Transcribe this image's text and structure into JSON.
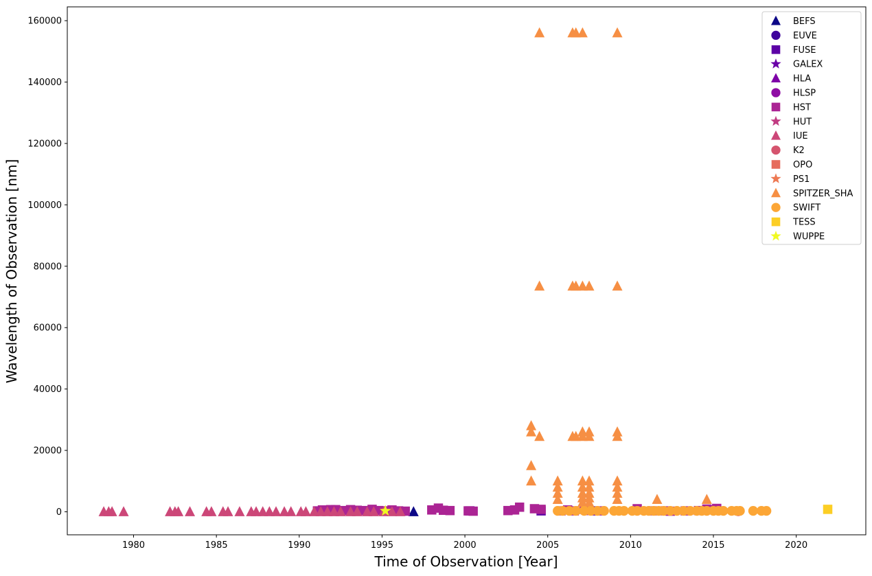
{
  "chart_data": {
    "type": "scatter",
    "title": "",
    "xlabel": "Time of Observation [Year]",
    "ylabel": "Wavelength of Observation [nm]",
    "xlim": [
      1976.0,
      2024.2
    ],
    "ylim": [
      -7500,
      164500
    ],
    "xticks": [
      1980,
      1985,
      1990,
      1995,
      2000,
      2005,
      2010,
      2015,
      2020
    ],
    "yticks": [
      0,
      20000,
      40000,
      60000,
      80000,
      100000,
      120000,
      140000,
      160000
    ],
    "grid": false,
    "legend_position": "top-right",
    "series": [
      {
        "name": "BEFS",
        "marker": "triangle",
        "color": "#0d0887",
        "points": [
          [
            1996.9,
            0
          ]
        ]
      },
      {
        "name": "EUVE",
        "marker": "circle",
        "color": "#3e049c",
        "points": []
      },
      {
        "name": "FUSE",
        "marker": "square",
        "color": "#5c01a6",
        "points": [
          [
            2000.3,
            300
          ],
          [
            2004.6,
            300
          ],
          [
            2007.8,
            300
          ]
        ]
      },
      {
        "name": "GALEX",
        "marker": "star",
        "color": "#6a00a8",
        "points": []
      },
      {
        "name": "HLA",
        "marker": "triangle",
        "color": "#7e03a8",
        "points": []
      },
      {
        "name": "HLSP",
        "marker": "circle",
        "color": "#8f0da4",
        "points": []
      },
      {
        "name": "HST",
        "marker": "square",
        "color": "#ab2494",
        "points": [
          [
            1991.1,
            300
          ],
          [
            1991.4,
            600
          ],
          [
            1991.9,
            700
          ],
          [
            1992.2,
            700
          ],
          [
            1992.6,
            400
          ],
          [
            1993.1,
            700
          ],
          [
            1993.5,
            500
          ],
          [
            1994.0,
            400
          ],
          [
            1994.4,
            800
          ],
          [
            1994.8,
            400
          ],
          [
            1995.2,
            300
          ],
          [
            1995.6,
            600
          ],
          [
            1996.0,
            300
          ],
          [
            1996.4,
            200
          ],
          [
            1998.0,
            600
          ],
          [
            1998.4,
            1200
          ],
          [
            1998.7,
            500
          ],
          [
            1999.1,
            400
          ],
          [
            2000.2,
            300
          ],
          [
            2000.5,
            200
          ],
          [
            2002.6,
            400
          ],
          [
            2003.0,
            600
          ],
          [
            2003.3,
            1500
          ],
          [
            2004.2,
            1000
          ],
          [
            2004.6,
            800
          ],
          [
            2005.8,
            300
          ],
          [
            2006.2,
            600
          ],
          [
            2006.6,
            300
          ],
          [
            2007.2,
            800
          ],
          [
            2007.5,
            400
          ],
          [
            2008.2,
            300
          ],
          [
            2010.4,
            1000
          ],
          [
            2011.3,
            300
          ],
          [
            2012.1,
            300
          ],
          [
            2012.4,
            200
          ],
          [
            2013.3,
            300
          ],
          [
            2014.1,
            400
          ],
          [
            2014.6,
            900
          ],
          [
            2014.9,
            700
          ],
          [
            2015.2,
            1100
          ]
        ]
      },
      {
        "name": "HUT",
        "marker": "star",
        "color": "#c13b82",
        "points": []
      },
      {
        "name": "IUE",
        "marker": "triangle",
        "color": "#cc4778",
        "points": [
          [
            1978.2,
            0
          ],
          [
            1978.5,
            0
          ],
          [
            1978.7,
            0
          ],
          [
            1979.4,
            0
          ],
          [
            1982.2,
            0
          ],
          [
            1982.5,
            0
          ],
          [
            1982.7,
            0
          ],
          [
            1983.4,
            0
          ],
          [
            1984.4,
            0
          ],
          [
            1984.7,
            0
          ],
          [
            1985.4,
            0
          ],
          [
            1985.7,
            0
          ],
          [
            1986.4,
            0
          ],
          [
            1987.1,
            0
          ],
          [
            1987.4,
            0
          ],
          [
            1987.8,
            0
          ],
          [
            1988.2,
            0
          ],
          [
            1988.6,
            0
          ],
          [
            1989.1,
            0
          ],
          [
            1989.5,
            0
          ],
          [
            1990.1,
            0
          ],
          [
            1990.4,
            0
          ],
          [
            1990.9,
            0
          ],
          [
            1991.3,
            0
          ],
          [
            1991.7,
            0
          ],
          [
            1992.1,
            0
          ],
          [
            1992.5,
            0
          ],
          [
            1993.1,
            0
          ],
          [
            1993.5,
            0
          ],
          [
            1994.1,
            0
          ],
          [
            1994.5,
            0
          ],
          [
            1995.1,
            0
          ],
          [
            1995.6,
            0
          ],
          [
            1996.1,
            0
          ]
        ]
      },
      {
        "name": "K2",
        "marker": "circle",
        "color": "#d5546e",
        "points": [
          [
            2016.5,
            200
          ]
        ]
      },
      {
        "name": "OPO",
        "marker": "square",
        "color": "#e66c5c",
        "points": []
      },
      {
        "name": "PS1",
        "marker": "star",
        "color": "#ed7953",
        "points": []
      },
      {
        "name": "SPITZER_SHA",
        "marker": "triangle",
        "color": "#f68f44",
        "points": [
          [
            2004.0,
            28000
          ],
          [
            2004.0,
            26000
          ],
          [
            2004.0,
            15000
          ],
          [
            2004.0,
            10000
          ],
          [
            2004.5,
            156000
          ],
          [
            2004.5,
            73500
          ],
          [
            2004.5,
            24500
          ],
          [
            2005.6,
            10000
          ],
          [
            2005.6,
            8000
          ],
          [
            2005.6,
            6000
          ],
          [
            2005.6,
            4000
          ],
          [
            2006.5,
            156000
          ],
          [
            2006.7,
            156000
          ],
          [
            2006.5,
            73500
          ],
          [
            2006.7,
            73500
          ],
          [
            2006.5,
            24500
          ],
          [
            2006.7,
            24500
          ],
          [
            2007.1,
            156000
          ],
          [
            2007.1,
            73500
          ],
          [
            2007.1,
            26000
          ],
          [
            2007.1,
            24500
          ],
          [
            2007.1,
            10000
          ],
          [
            2007.1,
            8000
          ],
          [
            2007.1,
            6000
          ],
          [
            2007.1,
            4500
          ],
          [
            2007.1,
            3000
          ],
          [
            2007.5,
            73500
          ],
          [
            2007.5,
            26000
          ],
          [
            2007.5,
            24500
          ],
          [
            2007.5,
            10000
          ],
          [
            2007.5,
            8000
          ],
          [
            2007.5,
            6000
          ],
          [
            2007.5,
            4500
          ],
          [
            2007.5,
            3000
          ],
          [
            2009.2,
            156000
          ],
          [
            2009.2,
            73500
          ],
          [
            2009.2,
            26000
          ],
          [
            2009.2,
            24500
          ],
          [
            2009.2,
            10000
          ],
          [
            2009.2,
            8000
          ],
          [
            2009.2,
            6000
          ],
          [
            2009.2,
            4000
          ],
          [
            2011.6,
            4000
          ],
          [
            2014.6,
            4000
          ]
        ]
      },
      {
        "name": "SWIFT",
        "marker": "circle",
        "color": "#fca636",
        "points": [
          [
            2005.6,
            300
          ],
          [
            2005.9,
            300
          ],
          [
            2006.3,
            300
          ],
          [
            2006.7,
            300
          ],
          [
            2007.2,
            300
          ],
          [
            2007.6,
            300
          ],
          [
            2008.0,
            300
          ],
          [
            2008.4,
            300
          ],
          [
            2009.0,
            300
          ],
          [
            2009.3,
            300
          ],
          [
            2009.6,
            300
          ],
          [
            2010.1,
            300
          ],
          [
            2010.4,
            300
          ],
          [
            2010.8,
            300
          ],
          [
            2011.1,
            300
          ],
          [
            2011.4,
            300
          ],
          [
            2011.7,
            300
          ],
          [
            2012.0,
            300
          ],
          [
            2012.4,
            300
          ],
          [
            2012.8,
            300
          ],
          [
            2013.2,
            300
          ],
          [
            2013.6,
            300
          ],
          [
            2014.0,
            300
          ],
          [
            2014.3,
            300
          ],
          [
            2014.6,
            300
          ],
          [
            2015.0,
            300
          ],
          [
            2015.3,
            300
          ],
          [
            2015.6,
            300
          ],
          [
            2016.1,
            300
          ],
          [
            2016.4,
            300
          ],
          [
            2016.6,
            300
          ],
          [
            2017.4,
            300
          ],
          [
            2017.9,
            300
          ],
          [
            2018.2,
            300
          ]
        ]
      },
      {
        "name": "TESS",
        "marker": "square",
        "color": "#fcce25",
        "points": [
          [
            2021.9,
            800
          ]
        ]
      },
      {
        "name": "WUPPE",
        "marker": "star",
        "color": "#f0f921",
        "points": [
          [
            1995.2,
            300
          ]
        ]
      }
    ]
  }
}
